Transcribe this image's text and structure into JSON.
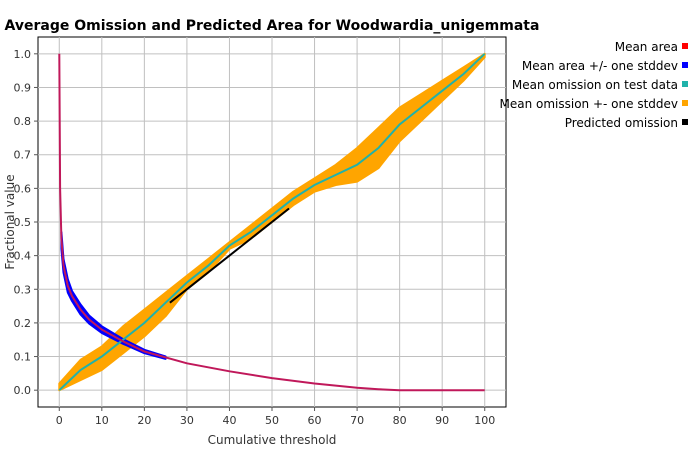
{
  "chart_data": {
    "type": "line",
    "title": "Average Omission and Predicted Area for Woodwardia_unigemmata",
    "xlabel": "Cumulative threshold",
    "ylabel": "Fractional value",
    "xlim": [
      -5,
      105
    ],
    "ylim": [
      -0.05,
      1.05
    ],
    "x_ticks": [
      0,
      10,
      20,
      30,
      40,
      50,
      60,
      70,
      80,
      90,
      100
    ],
    "y_ticks": [
      0.0,
      0.1,
      0.2,
      0.3,
      0.4,
      0.5,
      0.6,
      0.7,
      0.8,
      0.9,
      1.0
    ],
    "x_tick_labels": [
      "0",
      "10",
      "20",
      "30",
      "40",
      "50",
      "60",
      "70",
      "80",
      "90",
      "100"
    ],
    "y_tick_labels": [
      "0.0",
      "0.1",
      "0.2",
      "0.3",
      "0.4",
      "0.5",
      "0.6",
      "0.7",
      "0.8",
      "0.9",
      "1.0"
    ],
    "grid": true,
    "legend_position": "right",
    "series": [
      {
        "name": "Mean area",
        "color": "#ff0000",
        "x": [
          0,
          0.2,
          0.5,
          1,
          2,
          3,
          5,
          7,
          10,
          15,
          20,
          30,
          40,
          50,
          60,
          70,
          75,
          80,
          90,
          100
        ],
        "y": [
          1.0,
          0.6,
          0.45,
          0.37,
          0.31,
          0.28,
          0.24,
          0.21,
          0.18,
          0.145,
          0.115,
          0.08,
          0.056,
          0.036,
          0.02,
          0.007,
          0.003,
          0.0,
          0.0,
          0.0
        ]
      },
      {
        "name": "Mean area +/- one stddev",
        "color": "#0000ff",
        "x": [
          0.5,
          1,
          2,
          3,
          5,
          7,
          10,
          15,
          20,
          25
        ],
        "upper": [
          0.47,
          0.39,
          0.33,
          0.295,
          0.255,
          0.222,
          0.19,
          0.152,
          0.12,
          0.1
        ],
        "lower": [
          0.42,
          0.35,
          0.29,
          0.265,
          0.225,
          0.198,
          0.17,
          0.138,
          0.11,
          0.093
        ]
      },
      {
        "name": "Mean omission on test data",
        "color": "#20b2aa",
        "x": [
          0,
          5,
          10,
          15,
          20,
          25,
          30,
          35,
          40,
          45,
          50,
          55,
          60,
          65,
          70,
          75,
          80,
          85,
          90,
          95,
          100
        ],
        "y": [
          0.0,
          0.06,
          0.1,
          0.15,
          0.2,
          0.26,
          0.32,
          0.37,
          0.43,
          0.47,
          0.52,
          0.57,
          0.61,
          0.64,
          0.67,
          0.72,
          0.79,
          0.84,
          0.89,
          0.94,
          1.0
        ]
      },
      {
        "name": "Mean omission +- one stddev",
        "color": "#ffa500",
        "x": [
          0,
          5,
          10,
          15,
          20,
          25,
          30,
          35,
          40,
          45,
          50,
          55,
          60,
          65,
          70,
          75,
          80,
          85,
          90,
          95,
          100
        ],
        "upper": [
          0.02,
          0.09,
          0.13,
          0.19,
          0.24,
          0.29,
          0.34,
          0.39,
          0.44,
          0.49,
          0.54,
          0.59,
          0.63,
          0.67,
          0.72,
          0.78,
          0.84,
          0.88,
          0.92,
          0.96,
          1.0
        ],
        "lower": [
          0.0,
          0.03,
          0.06,
          0.11,
          0.16,
          0.22,
          0.3,
          0.35,
          0.42,
          0.45,
          0.5,
          0.55,
          0.59,
          0.61,
          0.62,
          0.66,
          0.74,
          0.8,
          0.86,
          0.92,
          0.99
        ]
      },
      {
        "name": "Predicted omission",
        "color": "#000000",
        "x": [
          26,
          54
        ],
        "y": [
          0.26,
          0.54
        ]
      }
    ]
  }
}
